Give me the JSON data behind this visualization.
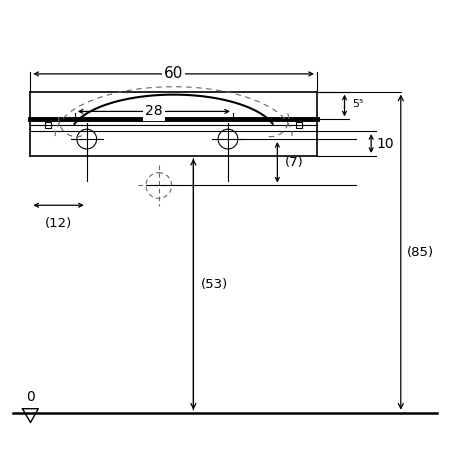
{
  "bg_color": "#ffffff",
  "lc": "#000000",
  "dc": "#666666",
  "label_60": "60",
  "label_28": "28",
  "label_55": "5⁵",
  "label_10": "10",
  "label_12": "(12)",
  "label_7": "(7)",
  "label_53": "(53)",
  "label_85": "(85)",
  "label_0": "0"
}
